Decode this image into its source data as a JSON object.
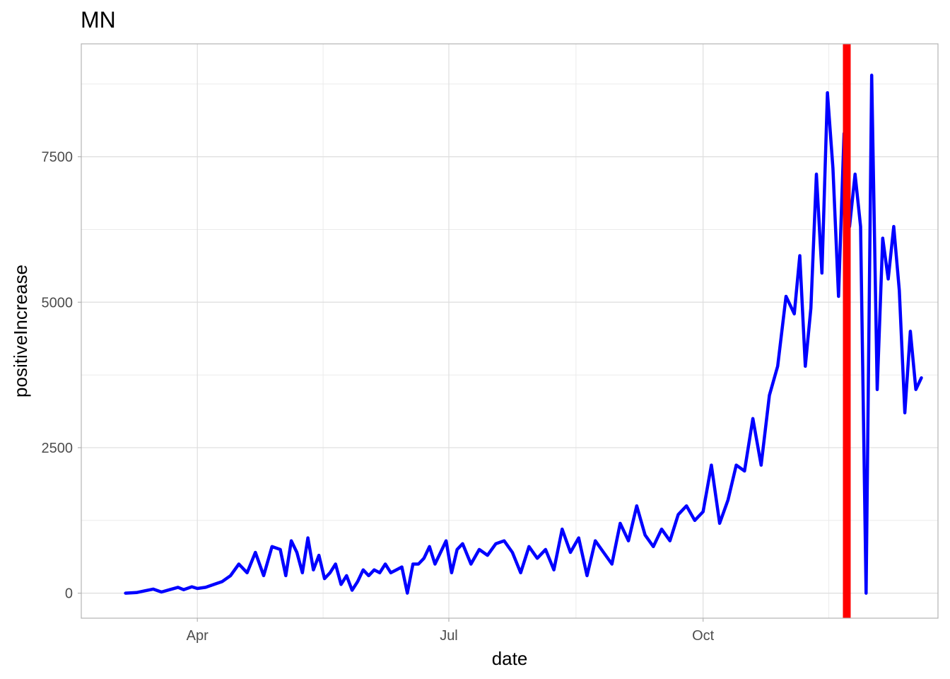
{
  "chart_data": {
    "type": "line",
    "title": "MN",
    "xlabel": "date",
    "ylabel": "positiveIncrease",
    "x_ticks": [
      {
        "label": "Apr",
        "date": "2020-04-01"
      },
      {
        "label": "Jul",
        "date": "2020-07-01"
      },
      {
        "label": "Oct",
        "date": "2020-10-01"
      }
    ],
    "y_ticks": [
      0,
      2500,
      5000,
      7500
    ],
    "xlim": [
      "2020-02-19",
      "2020-12-25"
    ],
    "ylim": [
      -430,
      9440
    ],
    "grid": true,
    "legend": "none",
    "series": [
      {
        "color": "#0000ff",
        "x": [
          "2020-03-06",
          "2020-03-10",
          "2020-03-13",
          "2020-03-16",
          "2020-03-19",
          "2020-03-22",
          "2020-03-25",
          "2020-03-27",
          "2020-03-30",
          "2020-04-01",
          "2020-04-04",
          "2020-04-07",
          "2020-04-10",
          "2020-04-13",
          "2020-04-16",
          "2020-04-19",
          "2020-04-22",
          "2020-04-25",
          "2020-04-28",
          "2020-05-01",
          "2020-05-03",
          "2020-05-05",
          "2020-05-07",
          "2020-05-09",
          "2020-05-11",
          "2020-05-13",
          "2020-05-15",
          "2020-05-17",
          "2020-05-19",
          "2020-05-21",
          "2020-05-23",
          "2020-05-25",
          "2020-05-27",
          "2020-05-29",
          "2020-05-31",
          "2020-06-02",
          "2020-06-04",
          "2020-06-06",
          "2020-06-08",
          "2020-06-10",
          "2020-06-12",
          "2020-06-14",
          "2020-06-16",
          "2020-06-18",
          "2020-06-20",
          "2020-06-22",
          "2020-06-24",
          "2020-06-26",
          "2020-06-28",
          "2020-06-30",
          "2020-07-02",
          "2020-07-04",
          "2020-07-06",
          "2020-07-09",
          "2020-07-12",
          "2020-07-15",
          "2020-07-18",
          "2020-07-21",
          "2020-07-24",
          "2020-07-27",
          "2020-07-30",
          "2020-08-02",
          "2020-08-05",
          "2020-08-08",
          "2020-08-11",
          "2020-08-14",
          "2020-08-17",
          "2020-08-20",
          "2020-08-23",
          "2020-08-26",
          "2020-08-29",
          "2020-09-01",
          "2020-09-04",
          "2020-09-07",
          "2020-09-10",
          "2020-09-13",
          "2020-09-16",
          "2020-09-19",
          "2020-09-22",
          "2020-09-25",
          "2020-09-28",
          "2020-10-01",
          "2020-10-04",
          "2020-10-07",
          "2020-10-10",
          "2020-10-13",
          "2020-10-16",
          "2020-10-19",
          "2020-10-22",
          "2020-10-25",
          "2020-10-28",
          "2020-10-31",
          "2020-11-03",
          "2020-11-05",
          "2020-11-07",
          "2020-11-09",
          "2020-11-11",
          "2020-11-13",
          "2020-11-15",
          "2020-11-17",
          "2020-11-19",
          "2020-11-21",
          "2020-11-23",
          "2020-11-25",
          "2020-11-27",
          "2020-11-29",
          "2020-12-01",
          "2020-12-03",
          "2020-12-05",
          "2020-12-07",
          "2020-12-09",
          "2020-12-11",
          "2020-12-13",
          "2020-12-15",
          "2020-12-17",
          "2020-12-19"
        ],
        "y": [
          0,
          10,
          40,
          70,
          20,
          60,
          100,
          60,
          110,
          80,
          100,
          150,
          200,
          300,
          500,
          350,
          700,
          300,
          800,
          750,
          300,
          900,
          700,
          350,
          950,
          400,
          650,
          250,
          350,
          500,
          150,
          300,
          50,
          200,
          400,
          300,
          400,
          350,
          500,
          350,
          400,
          450,
          0,
          500,
          500,
          600,
          800,
          500,
          700,
          900,
          350,
          750,
          850,
          500,
          750,
          650,
          850,
          900,
          700,
          350,
          800,
          600,
          750,
          400,
          1100,
          700,
          950,
          300,
          900,
          700,
          500,
          1200,
          900,
          1500,
          1000,
          800,
          1100,
          900,
          1350,
          1500,
          1250,
          1400,
          2200,
          1200,
          1600,
          2200,
          2100,
          3000,
          2200,
          3400,
          3900,
          5100,
          4800,
          5800,
          3900,
          4900,
          7200,
          5500,
          8600,
          7300,
          5100,
          7900,
          6300,
          7200,
          6300,
          0,
          8900,
          3500,
          6100,
          5400,
          6300,
          5200,
          3100,
          4500,
          3500,
          3700
        ]
      }
    ],
    "reference_line": {
      "color": "#ff0000",
      "x": "2020-11-22"
    }
  }
}
